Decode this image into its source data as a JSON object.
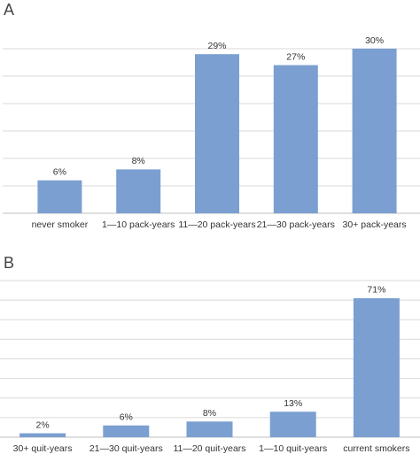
{
  "chart_data": [
    {
      "type": "bar",
      "title": "A",
      "categories": [
        "never smoker",
        "1—10 pack-years",
        "11—20 pack-years",
        "21—30 pack-years",
        "30+ pack-years"
      ],
      "values": [
        6,
        8,
        29,
        27,
        30
      ],
      "value_labels": [
        "6%",
        "8%",
        "29%",
        "27%",
        "30%"
      ],
      "color": "#7b9fd1",
      "ylim": [
        0,
        30
      ],
      "yticks": [
        0,
        5,
        10,
        15,
        20,
        25,
        30
      ],
      "grid": true
    },
    {
      "type": "bar",
      "title": "B",
      "categories": [
        "30+ quit-years",
        "21—30 quit-years",
        "11—20 quit-years",
        "1—10 quit-years",
        "current smokers"
      ],
      "values": [
        2,
        6,
        8,
        13,
        71
      ],
      "value_labels": [
        "2%",
        "6%",
        "8%",
        "13%",
        "71%"
      ],
      "color": "#7b9fd1",
      "ylim": [
        0,
        80
      ],
      "yticks": [
        0,
        10,
        20,
        30,
        40,
        50,
        60,
        70,
        80
      ],
      "grid": true
    }
  ]
}
